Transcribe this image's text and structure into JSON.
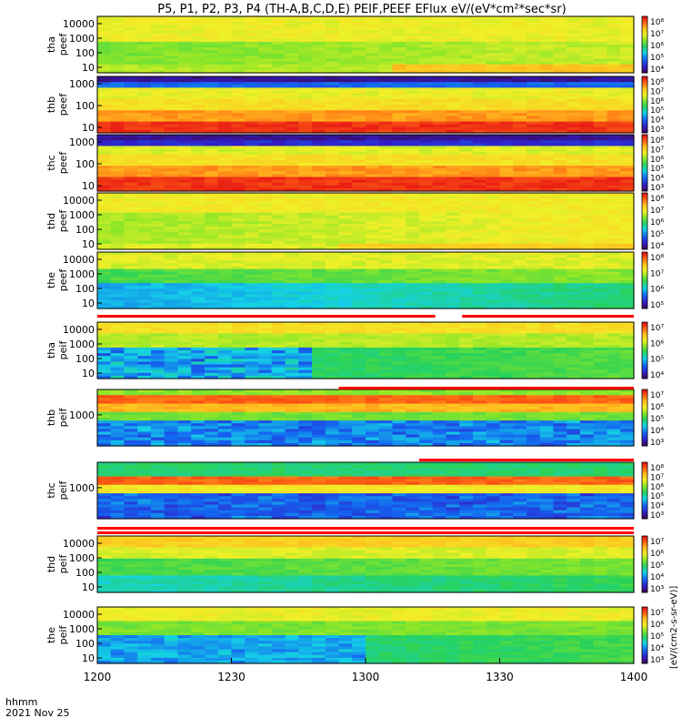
{
  "title": "P5, P1, P2, P3, P4 (TH-A,B,C,D,E) PEIF,PEEF EFlux eV/(eV*cm²*sec*sr)",
  "colorbar_unit_label": "[eV/(cm2-s-sr-eV)]",
  "xaxis": {
    "label": "hhmm",
    "date": "2021 Nov 25",
    "ticks": [
      "1200",
      "1230",
      "1300",
      "1330",
      "1400"
    ],
    "range": [
      "12:00",
      "14:00"
    ]
  },
  "chart_data": [
    {
      "type": "heatmap",
      "panel": "tha peef",
      "ylabel": [
        "tha",
        "peef"
      ],
      "yscale": "log",
      "yticks": [
        "10",
        "100",
        "1000",
        "10000"
      ],
      "cbar_ticks": [
        "10⁴",
        "10⁵",
        "10⁶",
        "10⁷",
        "10⁸"
      ],
      "cbar_range_exp": [
        4,
        8
      ],
      "overview": "yellow/green band at mid energies, decreasing toward low energies; orange at lowest energies after 13:10"
    },
    {
      "type": "heatmap",
      "panel": "thb peef",
      "ylabel": [
        "thb",
        "peef"
      ],
      "yscale": "log",
      "yticks": [
        "10",
        "100",
        "1000"
      ],
      "cbar_ticks": [
        "10³",
        "10⁴",
        "10⁵",
        "10⁶",
        "10⁷",
        "10⁸"
      ],
      "cbar_range_exp": [
        3,
        8
      ],
      "overview": "dark blue/purple at top energies, yellow/orange middle, red at low energies"
    },
    {
      "type": "heatmap",
      "panel": "thc peef",
      "ylabel": [
        "thc",
        "peef"
      ],
      "yscale": "log",
      "yticks": [
        "10",
        "100",
        "1000"
      ],
      "cbar_ticks": [
        "10³",
        "10⁴",
        "10⁵",
        "10⁶",
        "10⁷",
        "10⁸"
      ],
      "cbar_range_exp": [
        3,
        8
      ],
      "overview": "dark blue at top energies, yellow/orange middle, red at low energies"
    },
    {
      "type": "heatmap",
      "panel": "thd peef",
      "ylabel": [
        "thd",
        "peef"
      ],
      "yscale": "log",
      "yticks": [
        "10",
        "100",
        "1000",
        "10000"
      ],
      "cbar_ticks": [
        "10⁴",
        "10⁵",
        "10⁶",
        "10⁷",
        "10⁸"
      ],
      "cbar_range_exp": [
        4,
        8
      ],
      "overview": "mostly yellow with green at mid energies early, orange at lowest energies later"
    },
    {
      "type": "heatmap",
      "panel": "the peef",
      "ylabel": [
        "the",
        "peef"
      ],
      "yscale": "log",
      "yticks": [
        "10",
        "100",
        "1000",
        "10000"
      ],
      "cbar_ticks": [
        "10⁵",
        "10⁶",
        "10⁷",
        "10⁸"
      ],
      "cbar_range_exp": [
        5,
        8
      ],
      "overview": "yellow at high energies, green/blue at low energies"
    },
    {
      "type": "heatmap",
      "panel": "tha peif",
      "ylabel": [
        "tha",
        "peif"
      ],
      "yscale": "log",
      "yticks": [
        "10",
        "100",
        "1000",
        "10000"
      ],
      "cbar_ticks": [
        "10⁴",
        "10⁵",
        "10⁶",
        "10⁷"
      ],
      "cbar_range_exp": [
        4,
        7
      ],
      "overview": "yellow/orange at top, blue speckle at low energies early, green later"
    },
    {
      "type": "heatmap",
      "panel": "thb peif",
      "ylabel": [
        "thb",
        "peif"
      ],
      "yscale": "log",
      "yticks": [
        "1000"
      ],
      "cbar_ticks": [
        "10³",
        "10⁴",
        "10⁵",
        "10⁶",
        "10⁷"
      ],
      "cbar_range_exp": [
        3,
        7
      ],
      "overview": "red/orange band near 1000 eV, blue below"
    },
    {
      "type": "heatmap",
      "panel": "thc peif",
      "ylabel": [
        "thc",
        "peif"
      ],
      "yscale": "log",
      "yticks": [
        "1000"
      ],
      "cbar_ticks": [
        "10³",
        "10⁴",
        "10⁵",
        "10⁶",
        "10⁷",
        "10⁸"
      ],
      "cbar_range_exp": [
        3,
        8
      ],
      "overview": "green top, red band near 1000 eV, blue/purple below"
    },
    {
      "type": "heatmap",
      "panel": "thd peif",
      "ylabel": [
        "thd",
        "peif"
      ],
      "yscale": "log",
      "yticks": [
        "10",
        "100",
        "1000",
        "10000"
      ],
      "cbar_ticks": [
        "10³",
        "10⁴",
        "10⁵",
        "10⁶",
        "10⁷"
      ],
      "cbar_range_exp": [
        3,
        7
      ],
      "overview": "orange/yellow top, green to cyan toward low energies"
    },
    {
      "type": "heatmap",
      "panel": "the peif",
      "ylabel": [
        "the",
        "peif"
      ],
      "yscale": "log",
      "yticks": [
        "10",
        "100",
        "1000",
        "10000"
      ],
      "cbar_ticks": [
        "10³",
        "10⁴",
        "10⁵",
        "10⁶",
        "10⁷"
      ],
      "cbar_range_exp": [
        3,
        7
      ],
      "overview": "yellow top, green mid, blue at low energies early"
    }
  ]
}
